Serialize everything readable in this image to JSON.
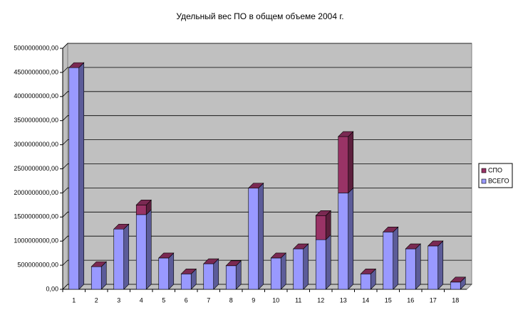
{
  "chart_data": {
    "type": "bar3d_stacked",
    "title": "Удельный вес ПО в общем объеме 2004 г.",
    "categories": [
      "1",
      "2",
      "3",
      "4",
      "5",
      "6",
      "7",
      "8",
      "9",
      "10",
      "11",
      "12",
      "13",
      "14",
      "15",
      "16",
      "17",
      "18"
    ],
    "series": [
      {
        "name": "ВСЕГО",
        "color": "#9999ff",
        "values": [
          4600000000,
          470000000,
          1250000000,
          1550000000,
          650000000,
          320000000,
          530000000,
          490000000,
          2100000000,
          650000000,
          840000000,
          1030000000,
          2000000000,
          320000000,
          1190000000,
          840000000,
          900000000,
          150000000
        ]
      },
      {
        "name": "СПО",
        "color": "#993366",
        "values": [
          0,
          0,
          0,
          200000000,
          0,
          0,
          0,
          0,
          0,
          0,
          0,
          500000000,
          1170000000,
          0,
          0,
          0,
          0,
          0
        ]
      }
    ],
    "ylim": [
      0,
      5000000000
    ],
    "yticks": [
      {
        "value": 0,
        "label": "0,00"
      },
      {
        "value": 500000000,
        "label": "500000000,00"
      },
      {
        "value": 1000000000,
        "label": "1000000000,00"
      },
      {
        "value": 1500000000,
        "label": "1500000000,00"
      },
      {
        "value": 2000000000,
        "label": "2000000000,00"
      },
      {
        "value": 2500000000,
        "label": "2500000000,00"
      },
      {
        "value": 3000000000,
        "label": "3000000000,00"
      },
      {
        "value": 3500000000,
        "label": "3500000000,00"
      },
      {
        "value": 4000000000,
        "label": "4000000000,00"
      },
      {
        "value": 4500000000,
        "label": "4500000000,00"
      },
      {
        "value": 5000000000,
        "label": "5000000000,00"
      }
    ],
    "grid": true,
    "legend": "right"
  }
}
